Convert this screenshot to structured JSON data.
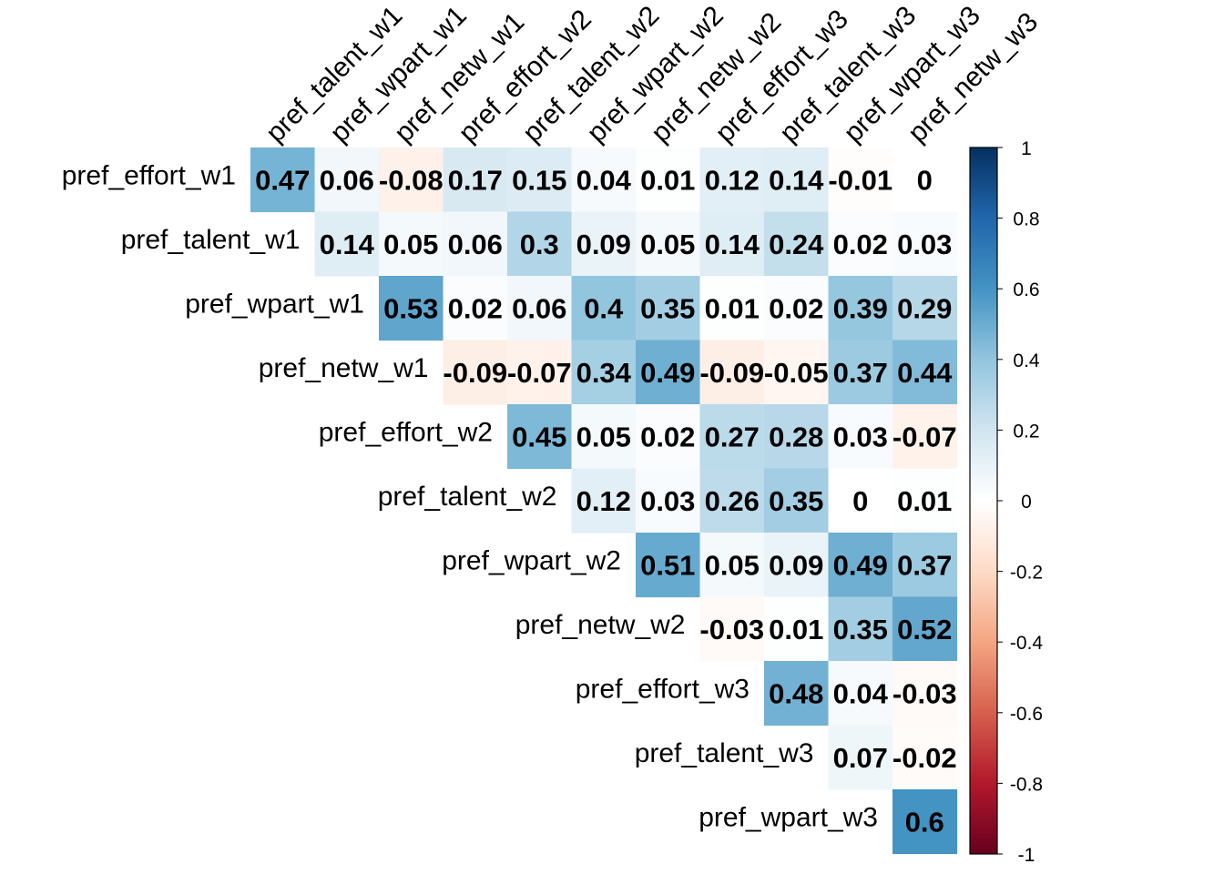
{
  "chart_data": {
    "type": "heatmap",
    "title": "",
    "row_labels": [
      "pref_effort_w1",
      "pref_talent_w1",
      "pref_wpart_w1",
      "pref_netw_w1",
      "pref_effort_w2",
      "pref_talent_w2",
      "pref_wpart_w2",
      "pref_netw_w2",
      "pref_effort_w3",
      "pref_talent_w3",
      "pref_wpart_w3"
    ],
    "col_labels": [
      "pref_talent_w1",
      "pref_wpart_w1",
      "pref_netw_w1",
      "pref_effort_w2",
      "pref_talent_w2",
      "pref_wpart_w2",
      "pref_netw_w2",
      "pref_effort_w3",
      "pref_talent_w3",
      "pref_wpart_w3",
      "pref_netw_w3"
    ],
    "layout": "upper-triangle",
    "cell_labels": [
      [
        "0.47",
        "0.06",
        "-0.08",
        "0.17",
        "0.15",
        "0.04",
        "0.01",
        "0.12",
        "0.14",
        "-0.01",
        "0"
      ],
      [
        "0.14",
        "0.05",
        "0.06",
        "0.3",
        "0.09",
        "0.05",
        "0.14",
        "0.24",
        "0.02",
        "0.03"
      ],
      [
        "0.53",
        "0.02",
        "0.06",
        "0.4",
        "0.35",
        "0.01",
        "0.02",
        "0.39",
        "0.29"
      ],
      [
        "-0.09",
        "-0.07",
        "0.34",
        "0.49",
        "-0.09",
        "-0.05",
        "0.37",
        "0.44"
      ],
      [
        "0.45",
        "0.05",
        "0.02",
        "0.27",
        "0.28",
        "0.03",
        "-0.07"
      ],
      [
        "0.12",
        "0.03",
        "0.26",
        "0.35",
        "0",
        "0.01"
      ],
      [
        "0.51",
        "0.05",
        "0.09",
        "0.49",
        "0.37"
      ],
      [
        "-0.03",
        "0.01",
        "0.35",
        "0.52"
      ],
      [
        "0.48",
        "0.04",
        "-0.03"
      ],
      [
        "0.07",
        "-0.02"
      ],
      [
        "0.6"
      ]
    ],
    "values": [
      [
        0.47,
        0.06,
        -0.08,
        0.17,
        0.15,
        0.04,
        0.01,
        0.12,
        0.14,
        -0.01,
        0
      ],
      [
        0.14,
        0.05,
        0.06,
        0.3,
        0.09,
        0.05,
        0.14,
        0.24,
        0.02,
        0.03
      ],
      [
        0.53,
        0.02,
        0.06,
        0.4,
        0.35,
        0.01,
        0.02,
        0.39,
        0.29
      ],
      [
        -0.09,
        -0.07,
        0.34,
        0.49,
        -0.09,
        -0.05,
        0.37,
        0.44
      ],
      [
        0.45,
        0.05,
        0.02,
        0.27,
        0.28,
        0.03,
        -0.07
      ],
      [
        0.12,
        0.03,
        0.26,
        0.35,
        0,
        0.01
      ],
      [
        0.51,
        0.05,
        0.09,
        0.49,
        0.37
      ],
      [
        -0.03,
        0.01,
        0.35,
        0.52
      ],
      [
        0.48,
        0.04,
        -0.03
      ],
      [
        0.07,
        -0.02
      ],
      [
        0.6
      ]
    ],
    "colorbar": {
      "range": [
        -1,
        1
      ],
      "ticks": [
        "1",
        "0.8",
        "0.6",
        "0.4",
        "0.2",
        "0",
        "-0.2",
        "-0.4",
        "-0.6",
        "-0.8",
        "-1"
      ],
      "colors": [
        "#67001F",
        "#B2182B",
        "#D6604D",
        "#F4A582",
        "#FDDBC7",
        "#FFFFFF",
        "#D1E5F0",
        "#92C5DE",
        "#4393C3",
        "#2166AC",
        "#053061"
      ]
    },
    "grid": false
  }
}
